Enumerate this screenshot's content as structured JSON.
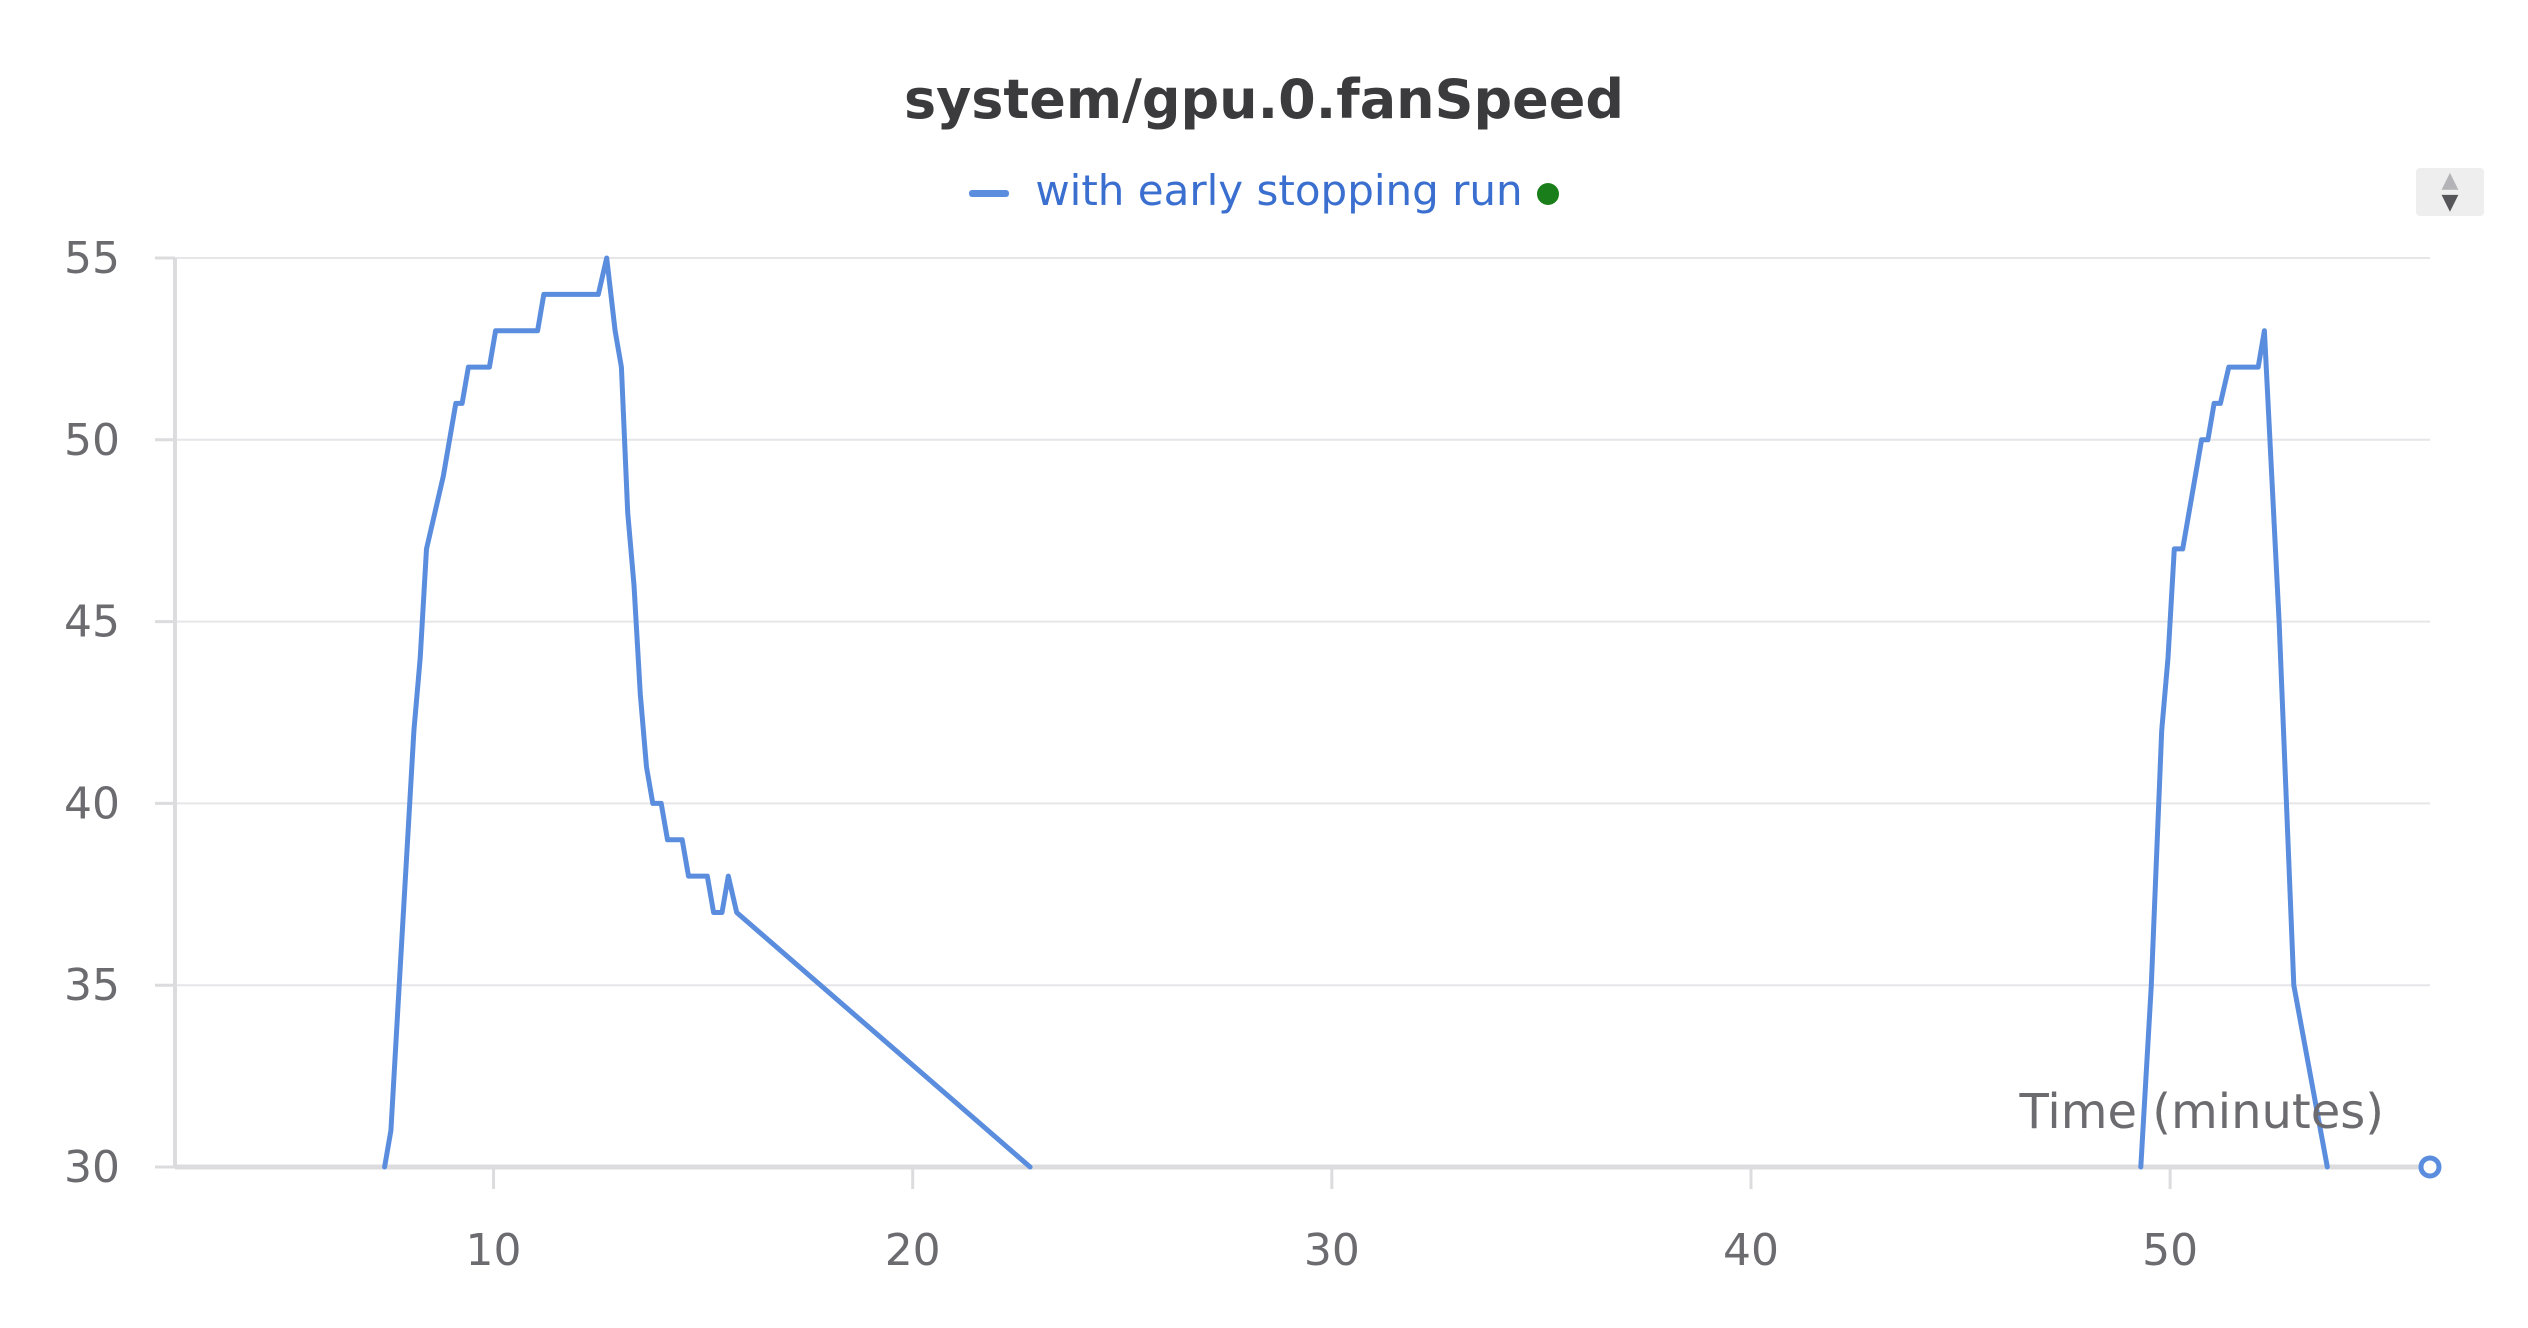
{
  "chart_data": {
    "type": "line",
    "title": "system/gpu.0.fanSpeed",
    "xlabel": "Time (minutes)",
    "ylabel": "",
    "xlim": [
      2.4,
      56.2
    ],
    "ylim": [
      30,
      55
    ],
    "xticks": [
      10,
      20,
      30,
      40,
      50
    ],
    "yticks": [
      30,
      35,
      40,
      45,
      50,
      55
    ],
    "grid": true,
    "legend_position": "top-center",
    "series": [
      {
        "name": "with early stopping run",
        "color": "#5b8dde",
        "status_color": "#1a7f1a",
        "segments": [
          [
            [
              7.4,
              30
            ],
            [
              7.55,
              31
            ],
            [
              7.75,
              35
            ],
            [
              7.95,
              39
            ],
            [
              8.1,
              42
            ],
            [
              8.25,
              44
            ],
            [
              8.4,
              47
            ],
            [
              8.8,
              49
            ],
            [
              9.1,
              51
            ],
            [
              9.25,
              51
            ],
            [
              9.4,
              52
            ],
            [
              9.9,
              52
            ],
            [
              10.05,
              53
            ],
            [
              11.05,
              53
            ],
            [
              11.2,
              54
            ],
            [
              12.5,
              54
            ],
            [
              12.7,
              55
            ],
            [
              12.9,
              53
            ],
            [
              13.05,
              52
            ],
            [
              13.2,
              48
            ],
            [
              13.35,
              46
            ],
            [
              13.5,
              43
            ],
            [
              13.65,
              41
            ],
            [
              13.8,
              40
            ],
            [
              14.0,
              40
            ],
            [
              14.15,
              39
            ],
            [
              14.5,
              39
            ],
            [
              14.65,
              38
            ],
            [
              15.1,
              38
            ],
            [
              15.25,
              37
            ],
            [
              15.45,
              37
            ],
            [
              15.6,
              38
            ],
            [
              15.8,
              37
            ],
            [
              22.8,
              30
            ]
          ],
          [
            [
              49.3,
              30
            ],
            [
              49.55,
              35
            ],
            [
              49.8,
              42
            ],
            [
              49.95,
              44
            ],
            [
              50.1,
              47
            ],
            [
              50.3,
              47
            ],
            [
              50.75,
              50
            ],
            [
              50.9,
              50
            ],
            [
              51.05,
              51
            ],
            [
              51.2,
              51
            ],
            [
              51.4,
              52
            ],
            [
              52.1,
              52
            ],
            [
              52.25,
              53
            ],
            [
              52.6,
              45
            ],
            [
              52.95,
              35
            ],
            [
              53.75,
              30
            ]
          ]
        ]
      }
    ]
  },
  "legend": {
    "label": "with early stopping run"
  },
  "controls": {
    "scroll_up": "▲",
    "scroll_down": "▼"
  }
}
